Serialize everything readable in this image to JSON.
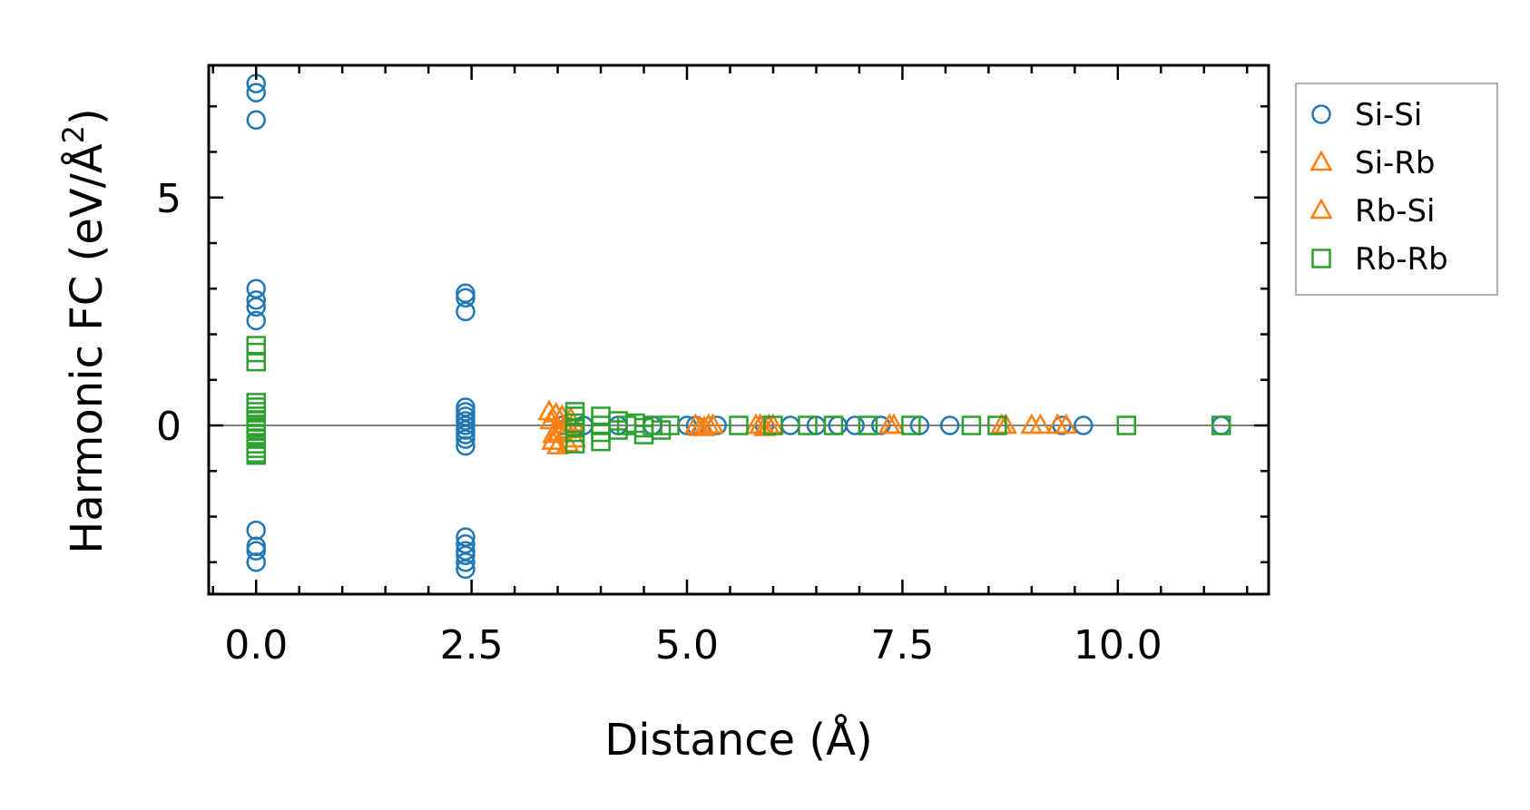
{
  "chart_data": {
    "type": "scatter",
    "title": "",
    "xlabel": "Distance (Å)",
    "ylabel": "Harmonic FC (eV/Å",
    "ylabel_sup": "2",
    "ylabel_close": ")",
    "xlim": [
      -0.55,
      11.75
    ],
    "ylim": [
      -3.7,
      7.9
    ],
    "xticks": [
      {
        "value": 0.0,
        "label": "0.0"
      },
      {
        "value": 2.5,
        "label": "2.5"
      },
      {
        "value": 5.0,
        "label": "5.0"
      },
      {
        "value": 7.5,
        "label": "7.5"
      },
      {
        "value": 10.0,
        "label": "10.0"
      }
    ],
    "yticks": [
      {
        "value": 0,
        "label": "0"
      },
      {
        "value": 5,
        "label": "5"
      }
    ],
    "x_minor_step": 0.5,
    "y_minor_step": 1,
    "zero_line": true,
    "grid": false,
    "legend_position": "right-outside-top",
    "series": [
      {
        "name": "Si-Si",
        "marker": "circle",
        "color": "#1f77b4",
        "x": [
          0,
          0,
          0,
          0,
          0,
          0,
          0,
          0,
          0,
          0,
          0,
          2.43,
          2.43,
          2.43,
          2.43,
          2.43,
          2.43,
          2.43,
          2.43,
          2.43,
          2.43,
          2.43,
          2.43,
          2.43,
          2.43,
          2.43,
          2.43,
          2.43,
          2.43,
          3.55,
          3.8,
          4.2,
          4.6,
          5.0,
          5.1,
          5.35,
          5.9,
          6.2,
          6.5,
          6.75,
          6.95,
          7.25,
          7.7,
          8.05,
          9.35,
          9.6,
          11.2
        ],
        "y": [
          7.5,
          7.3,
          6.7,
          3.0,
          2.75,
          2.6,
          2.3,
          -2.3,
          -2.65,
          -2.75,
          -3.0,
          2.9,
          2.8,
          2.5,
          0.4,
          0.3,
          0.1,
          0.0,
          -0.1,
          -0.2,
          -0.45,
          -2.45,
          -2.6,
          -2.85,
          -3.0,
          -3.15,
          0.2,
          -0.3,
          -2.75,
          0.0,
          0.0,
          0.0,
          0.0,
          0.0,
          0.0,
          0.0,
          0.0,
          0.0,
          0.0,
          0.0,
          0.0,
          0.0,
          0.0,
          0.0,
          0.0,
          0.0,
          0.0
        ]
      },
      {
        "name": "Si-Rb",
        "marker": "triangle",
        "color": "#ff7f0e",
        "x": [
          3.4,
          3.42,
          3.45,
          3.5,
          3.55,
          3.6,
          3.65,
          3.7,
          5.1,
          5.2,
          5.3,
          5.8,
          5.9,
          6.0,
          7.4,
          8.7,
          9.0,
          9.3
        ],
        "y": [
          0.3,
          0.1,
          -0.2,
          -0.45,
          0.2,
          -0.1,
          0.15,
          -0.3,
          0.0,
          -0.05,
          0.0,
          0.0,
          -0.05,
          0.0,
          0.0,
          0.0,
          0.0,
          0.0
        ]
      },
      {
        "name": "Rb-Si",
        "marker": "triangle",
        "color": "#ff7f0e",
        "x": [
          3.44,
          3.48,
          3.52,
          3.58,
          3.62,
          3.68,
          5.15,
          5.25,
          5.85,
          5.95,
          7.35,
          8.65,
          9.1,
          9.4
        ],
        "y": [
          -0.35,
          0.25,
          -0.15,
          0.0,
          -0.4,
          0.05,
          -0.05,
          0.0,
          0.0,
          0.0,
          0.0,
          0.0,
          0.0,
          0.0
        ]
      },
      {
        "name": "Rb-Rb",
        "marker": "square",
        "color": "#2ca02c",
        "x": [
          0,
          0,
          0,
          0,
          0,
          0,
          0,
          0,
          0,
          0,
          0,
          0,
          0,
          0,
          0,
          0,
          0,
          3.7,
          3.7,
          3.7,
          3.7,
          3.7,
          3.7,
          4.0,
          4.0,
          4.0,
          4.0,
          4.2,
          4.2,
          4.3,
          4.4,
          4.5,
          4.5,
          4.6,
          4.7,
          4.8,
          5.6,
          6.0,
          6.4,
          6.7,
          7.1,
          7.6,
          8.3,
          8.6,
          10.1,
          11.2
        ],
        "y": [
          1.75,
          1.6,
          1.4,
          0.5,
          0.4,
          0.3,
          0.2,
          0.1,
          0.0,
          -0.05,
          -0.1,
          -0.2,
          -0.3,
          -0.4,
          -0.5,
          -0.6,
          -0.65,
          0.3,
          0.2,
          0.05,
          -0.05,
          -0.15,
          -0.4,
          0.2,
          0.0,
          -0.15,
          -0.35,
          0.1,
          -0.1,
          0.0,
          0.05,
          -0.05,
          -0.2,
          0.0,
          -0.1,
          0.0,
          0.0,
          0.0,
          0.0,
          0.0,
          0.0,
          0.0,
          0.0,
          0.0,
          0.0,
          0.0
        ]
      }
    ]
  }
}
